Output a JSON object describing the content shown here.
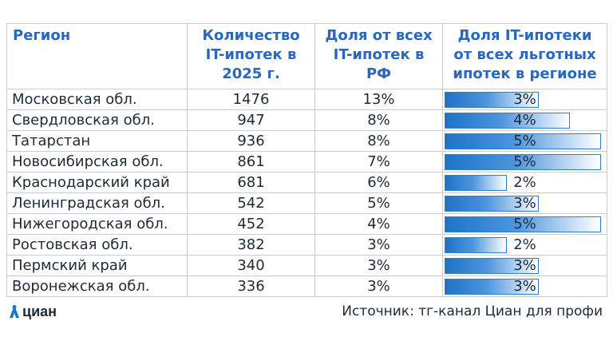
{
  "chart_data": {
    "type": "table",
    "columns": [
      "Регион",
      "Количество IT-ипотек в 2025 г.",
      "Доля от всех IT-ипотек в РФ",
      "Доля IT-ипотеки от всех льготных ипотек в регионе"
    ],
    "rows": [
      {
        "region": "Московская обл.",
        "count": "1476",
        "share_rf": "13%",
        "share_region": "3%",
        "share_region_value": 3.0
      },
      {
        "region": "Свердловская обл.",
        "count": "947",
        "share_rf": "8%",
        "share_region": "4%",
        "share_region_value": 4.0
      },
      {
        "region": "Татарстан",
        "count": "936",
        "share_rf": "8%",
        "share_region": "5%",
        "share_region_value": 5.0
      },
      {
        "region": "Новосибирская обл.",
        "count": "861",
        "share_rf": "7%",
        "share_region": "5%",
        "share_region_value": 5.0
      },
      {
        "region": "Краснодарский край",
        "count": "681",
        "share_rf": "6%",
        "share_region": "2%",
        "share_region_value": 2.0
      },
      {
        "region": "Ленинградская обл.",
        "count": "542",
        "share_rf": "5%",
        "share_region": "3%",
        "share_region_value": 3.0
      },
      {
        "region": "Нижегородская обл.",
        "count": "452",
        "share_rf": "4%",
        "share_region": "5%",
        "share_region_value": 5.0
      },
      {
        "region": "Ростовская обл.",
        "count": "382",
        "share_rf": "3%",
        "share_region": "2%",
        "share_region_value": 2.0
      },
      {
        "region": "Пермский край",
        "count": "340",
        "share_rf": "3%",
        "share_region": "3%",
        "share_region_value": 3.0
      },
      {
        "region": "Воронежская обл.",
        "count": "336",
        "share_rf": "3%",
        "share_region": "3%",
        "share_region_value": 3.0
      }
    ],
    "bar_scale_max": 5.1
  },
  "header": {
    "col1": "Регион",
    "col2_line1": "Количество",
    "col2_line2": "IT-ипотек в",
    "col2_line3": "2025 г.",
    "col3_line1": "Доля от всех",
    "col3_line2": "IT-ипотек в",
    "col3_line3": "РФ",
    "col4_line1": "Доля IT-ипотеки",
    "col4_line2": "от всех льготных",
    "col4_line3": "ипотек в регионе"
  },
  "footer": {
    "logo_text": "циан",
    "source": "Источник: тг-канал Циан для профи"
  },
  "colors": {
    "header_text": "#2a67bf",
    "bar_fill_start": "#1e73c8",
    "bar_border": "#2f7fd1",
    "grid": "#c8cdd3"
  }
}
